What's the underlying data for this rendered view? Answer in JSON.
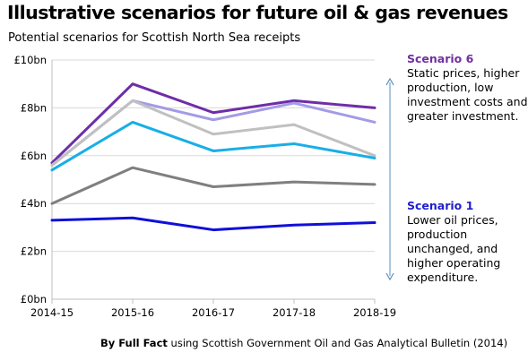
{
  "title": "Illustrative scenarios for future oil & gas revenues",
  "subtitle": "Potential scenarios for Scottish North Sea receipts",
  "annotations": {
    "top": {
      "heading": "Scenario 6",
      "text": "Static prices, higher production, low investment costs and greater investment.",
      "color": "#7030a0"
    },
    "bottom": {
      "heading": "Scenario 1",
      "text": "Lower oil prices, production unchanged, and higher operating expenditure.",
      "color": "#1f1fcc"
    }
  },
  "footer": {
    "bold": "By Full Fact",
    "rest": " using Scottish Government Oil and Gas Analytical Bulletin (2014)"
  },
  "chart_data": {
    "type": "line",
    "categories": [
      "2014-15",
      "2015-16",
      "2016-17",
      "2017-18",
      "2018-19"
    ],
    "y_ticks": [
      "£0bn",
      "£2bn",
      "£4bn",
      "£6bn",
      "£8bn",
      "£10bn"
    ],
    "ylim": [
      0,
      10
    ],
    "grid": "horizontal",
    "series": [
      {
        "values": [
          5.7,
          9.0,
          7.8,
          8.3,
          8.0
        ],
        "color": "#6f2da8"
      },
      {
        "values": [
          5.6,
          8.3,
          7.5,
          8.2,
          7.4
        ],
        "color": "#a39be6"
      },
      {
        "values": [
          5.6,
          8.3,
          6.9,
          7.3,
          6.0
        ],
        "color": "#c0c0c0"
      },
      {
        "values": [
          5.4,
          7.4,
          6.2,
          6.5,
          5.9
        ],
        "color": "#19aee6"
      },
      {
        "values": [
          4.0,
          5.5,
          4.7,
          4.9,
          4.8
        ],
        "color": "#7f7f7f"
      },
      {
        "values": [
          3.3,
          3.4,
          2.9,
          3.1,
          3.2
        ],
        "color": "#1010d9"
      }
    ],
    "range_arrow_color": "#5b8fbf"
  }
}
